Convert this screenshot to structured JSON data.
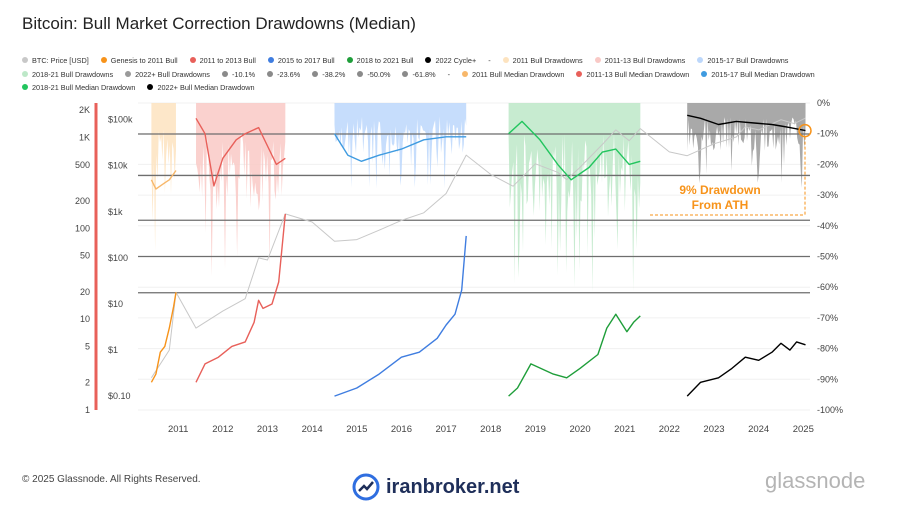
{
  "title": "Bitcoin: Bull Market Correction Drawdowns (Median)",
  "legend": [
    {
      "label": "BTC: Price [USD]",
      "color": "#c8c8c8",
      "style": "dot"
    },
    {
      "label": "Genesis to 2011 Bull",
      "color": "#f7931a",
      "style": "dot"
    },
    {
      "label": "2011 to 2013 Bull",
      "color": "#e8605a",
      "style": "dot"
    },
    {
      "label": "2015 to 2017 Bull",
      "color": "#3f7de0",
      "style": "dot"
    },
    {
      "label": "2018 to 2021 Bull",
      "color": "#1f9e3a",
      "style": "dot"
    },
    {
      "label": "2022 Cycle+",
      "color": "#000000",
      "style": "dot"
    },
    {
      "label": "-",
      "color": "#ffffff",
      "style": "none"
    },
    {
      "label": "2011 Bull Drawdowns",
      "color": "#fde3bf",
      "style": "dot"
    },
    {
      "label": "2011-13 Bull Drawdowns",
      "color": "#f9c9c6",
      "style": "dot"
    },
    {
      "label": "2015-17 Bull Drawdowns",
      "color": "#bcd7fb",
      "style": "dot"
    },
    {
      "label": "2018-21 Bull Drawdowns",
      "color": "#bde8c8",
      "style": "dot"
    },
    {
      "label": "2022+ Bull Drawdowns",
      "color": "#9a9a9a",
      "style": "dot"
    },
    {
      "label": "-10.1%",
      "color": "#8a8a8a",
      "style": "dot"
    },
    {
      "label": "-23.6%",
      "color": "#8a8a8a",
      "style": "dot"
    },
    {
      "label": "-38.2%",
      "color": "#8a8a8a",
      "style": "dot"
    },
    {
      "label": "-50.0%",
      "color": "#8a8a8a",
      "style": "dot"
    },
    {
      "label": "-61.8%",
      "color": "#8a8a8a",
      "style": "dot"
    },
    {
      "label": "-",
      "color": "#ffffff",
      "style": "none"
    },
    {
      "label": "2011 Bull Median Drawdown",
      "color": "#f7b76a",
      "style": "dot"
    },
    {
      "label": "2011-13 Bull Median Drawdown",
      "color": "#e8605a",
      "style": "dot"
    },
    {
      "label": "2015-17 Bull Median Drawdown",
      "color": "#3f9be0",
      "style": "dot"
    },
    {
      "label": "2018-21 Bull Median Drawdown",
      "color": "#22c55e",
      "style": "dot"
    },
    {
      "label": "2022+ Bull Median Drawdown",
      "color": "#000000",
      "style": "dot"
    }
  ],
  "watermark": "glassnode",
  "annotation": {
    "line1": "9% Drawdown",
    "line2": "From ATH",
    "color": "#f7931a"
  },
  "footer": {
    "copyright": "© 2025 Glassnode. All Rights Reserved.",
    "brand_center": "iranbroker.net",
    "brand_right": "glassnode"
  },
  "chart_data": {
    "type": "line",
    "x_ticks": [
      "2011",
      "2012",
      "2013",
      "2014",
      "2015",
      "2016",
      "2017",
      "2018",
      "2019",
      "2020",
      "2021",
      "2022",
      "2023",
      "2024",
      "2025"
    ],
    "left_axis_labels": [
      "2K",
      "1K",
      "500",
      "200",
      "100",
      "50",
      "20",
      "10",
      "5",
      "2",
      "1"
    ],
    "left_axis_values": [
      2000,
      1000,
      500,
      200,
      100,
      50,
      20,
      10,
      5,
      2,
      1
    ],
    "price_axis_labels": [
      "$100k",
      "$10k",
      "$1k",
      "$100",
      "$10",
      "$1",
      "$0.10"
    ],
    "price_axis_values": [
      100000,
      10000,
      1000,
      100,
      10,
      1,
      0.1
    ],
    "right_axis_labels": [
      "0%",
      "-10%",
      "-20%",
      "-30%",
      "-40%",
      "-50%",
      "-60%",
      "-70%",
      "-80%",
      "-90%",
      "-100%"
    ],
    "right_axis_values": [
      0,
      -10,
      -20,
      -30,
      -40,
      -50,
      -60,
      -70,
      -80,
      -90,
      -100
    ],
    "fib_levels": [
      -10.1,
      -23.6,
      -38.2,
      -50.0,
      -61.8
    ],
    "drawdown_ylim": [
      -100,
      0
    ],
    "latest_drawdown": -9,
    "series": [
      {
        "name": "BTC: Price [USD]",
        "color": "#c8c8c8",
        "axis": "price",
        "x": [
          2010.9,
          2011.3,
          2011.45,
          2011.9,
          2012.5,
          2013.0,
          2013.3,
          2013.5,
          2013.9,
          2014.5,
          2015.0,
          2015.5,
          2016.0,
          2016.5,
          2017.0,
          2017.5,
          2017.95,
          2018.5,
          2019.0,
          2019.5,
          2020.0,
          2020.2,
          2020.5,
          2021.0,
          2021.3,
          2021.6,
          2021.85,
          2022.5,
          2022.9,
          2023.5,
          2024.0,
          2024.2,
          2024.5,
          2025.0,
          2025.3,
          2025.55
        ],
        "y": [
          0.25,
          1,
          18,
          3,
          7,
          13,
          100,
          90,
          900,
          600,
          230,
          250,
          400,
          650,
          950,
          2500,
          17000,
          6500,
          3600,
          11000,
          7200,
          5000,
          9200,
          29000,
          60000,
          35000,
          64000,
          20000,
          16500,
          30000,
          42000,
          70000,
          60000,
          100000,
          82000,
          108000
        ]
      },
      {
        "name": "Genesis to 2011 Bull",
        "color": "#f7931a",
        "axis": "price",
        "x": [
          2010.9,
          2011.0,
          2011.1,
          2011.2,
          2011.3,
          2011.4,
          2011.45
        ],
        "y": [
          0.2,
          0.3,
          0.9,
          1.2,
          3,
          9,
          18
        ]
      },
      {
        "name": "2011 to 2013 Bull",
        "color": "#e8605a",
        "axis": "price",
        "x": [
          2011.9,
          2012.1,
          2012.4,
          2012.7,
          2013.0,
          2013.2,
          2013.3,
          2013.4,
          2013.6,
          2013.75,
          2013.9
        ],
        "y": [
          0.2,
          0.5,
          0.7,
          1.2,
          1.5,
          4,
          12,
          8,
          10,
          30,
          900
        ]
      },
      {
        "name": "2015 to 2017 Bull",
        "color": "#3f7de0",
        "axis": "price",
        "x": [
          2015.0,
          2015.5,
          2016.0,
          2016.5,
          2016.9,
          2017.3,
          2017.5,
          2017.7,
          2017.85,
          2017.95
        ],
        "y": [
          0.1,
          0.15,
          0.3,
          0.7,
          0.9,
          1.8,
          3.5,
          6,
          20,
          300
        ]
      },
      {
        "name": "2018 to 2021 Bull",
        "color": "#1f9e3a",
        "axis": "price",
        "x": [
          2018.9,
          2019.1,
          2019.4,
          2019.9,
          2020.2,
          2020.5,
          2020.9,
          2021.1,
          2021.3,
          2021.55,
          2021.7,
          2021.85
        ],
        "y": [
          0.1,
          0.15,
          0.5,
          0.3,
          0.25,
          0.4,
          0.8,
          3,
          6,
          2.5,
          4,
          5.5
        ]
      },
      {
        "name": "2022 Cycle+",
        "color": "#000000",
        "axis": "price",
        "x": [
          2022.9,
          2023.2,
          2023.6,
          2023.9,
          2024.2,
          2024.5,
          2024.8,
          2025.0,
          2025.2,
          2025.35,
          2025.55
        ],
        "y": [
          0.1,
          0.2,
          0.25,
          0.4,
          0.7,
          0.6,
          0.9,
          1.4,
          1.0,
          1.5,
          1.3
        ]
      },
      {
        "name": "2011 Bull Median Drawdown",
        "color": "#f7b76a",
        "axis": "drawdown",
        "x": [
          2010.9,
          2011.0,
          2011.1,
          2011.2,
          2011.3,
          2011.45
        ],
        "y": [
          -25,
          -28,
          -27,
          -26,
          -25,
          -22
        ]
      },
      {
        "name": "2011-13 Bull Median Drawdown",
        "color": "#e8605a",
        "axis": "drawdown",
        "x": [
          2011.9,
          2012.1,
          2012.3,
          2012.5,
          2012.8,
          2013.0,
          2013.3,
          2013.5,
          2013.7,
          2013.9
        ],
        "y": [
          -5,
          -10,
          -27,
          -18,
          -12,
          -10,
          -8,
          -14,
          -20,
          -18
        ]
      },
      {
        "name": "2015-17 Bull Median Drawdown",
        "color": "#3f9be0",
        "axis": "drawdown",
        "x": [
          2015.0,
          2015.3,
          2015.6,
          2016.0,
          2016.5,
          2017.0,
          2017.5,
          2017.95
        ],
        "y": [
          -10,
          -17,
          -19,
          -17,
          -15,
          -12,
          -11,
          -11
        ]
      },
      {
        "name": "2018-21 Bull Median Drawdown",
        "color": "#22c55e",
        "axis": "drawdown",
        "x": [
          2018.9,
          2019.2,
          2019.6,
          2020.0,
          2020.3,
          2020.7,
          2021.0,
          2021.3,
          2021.6,
          2021.85
        ],
        "y": [
          -10,
          -6,
          -12,
          -20,
          -25,
          -21,
          -16,
          -15,
          -20,
          -19
        ]
      },
      {
        "name": "2022+ Bull Median Drawdown",
        "color": "#000000",
        "axis": "drawdown",
        "x": [
          2022.9,
          2023.2,
          2023.6,
          2024.0,
          2024.4,
          2024.8,
          2025.0,
          2025.2,
          2025.55
        ],
        "y": [
          -4,
          -5,
          -7,
          -6,
          -6.5,
          -7,
          -7.5,
          -8,
          -9
        ]
      }
    ],
    "drawdown_areas": [
      {
        "name": "2011 Bull Drawdowns",
        "color": "#fde3bf",
        "x_start": 2010.9,
        "x_end": 2011.45,
        "max_depth": -50
      },
      {
        "name": "2011-13 Bull Drawdowns",
        "color": "#f9c9c6",
        "x_start": 2011.9,
        "x_end": 2013.9,
        "max_depth": -60
      },
      {
        "name": "2015-17 Bull Drawdowns",
        "color": "#bcd7fb",
        "x_start": 2015.0,
        "x_end": 2017.95,
        "max_depth": -28
      },
      {
        "name": "2018-21 Bull Drawdowns",
        "color": "#bde8c8",
        "x_start": 2018.9,
        "x_end": 2021.85,
        "max_depth": -62
      },
      {
        "name": "2022+ Bull Drawdowns",
        "color": "#9a9a9a",
        "x_start": 2022.9,
        "x_end": 2025.55,
        "max_depth": -28
      }
    ]
  }
}
